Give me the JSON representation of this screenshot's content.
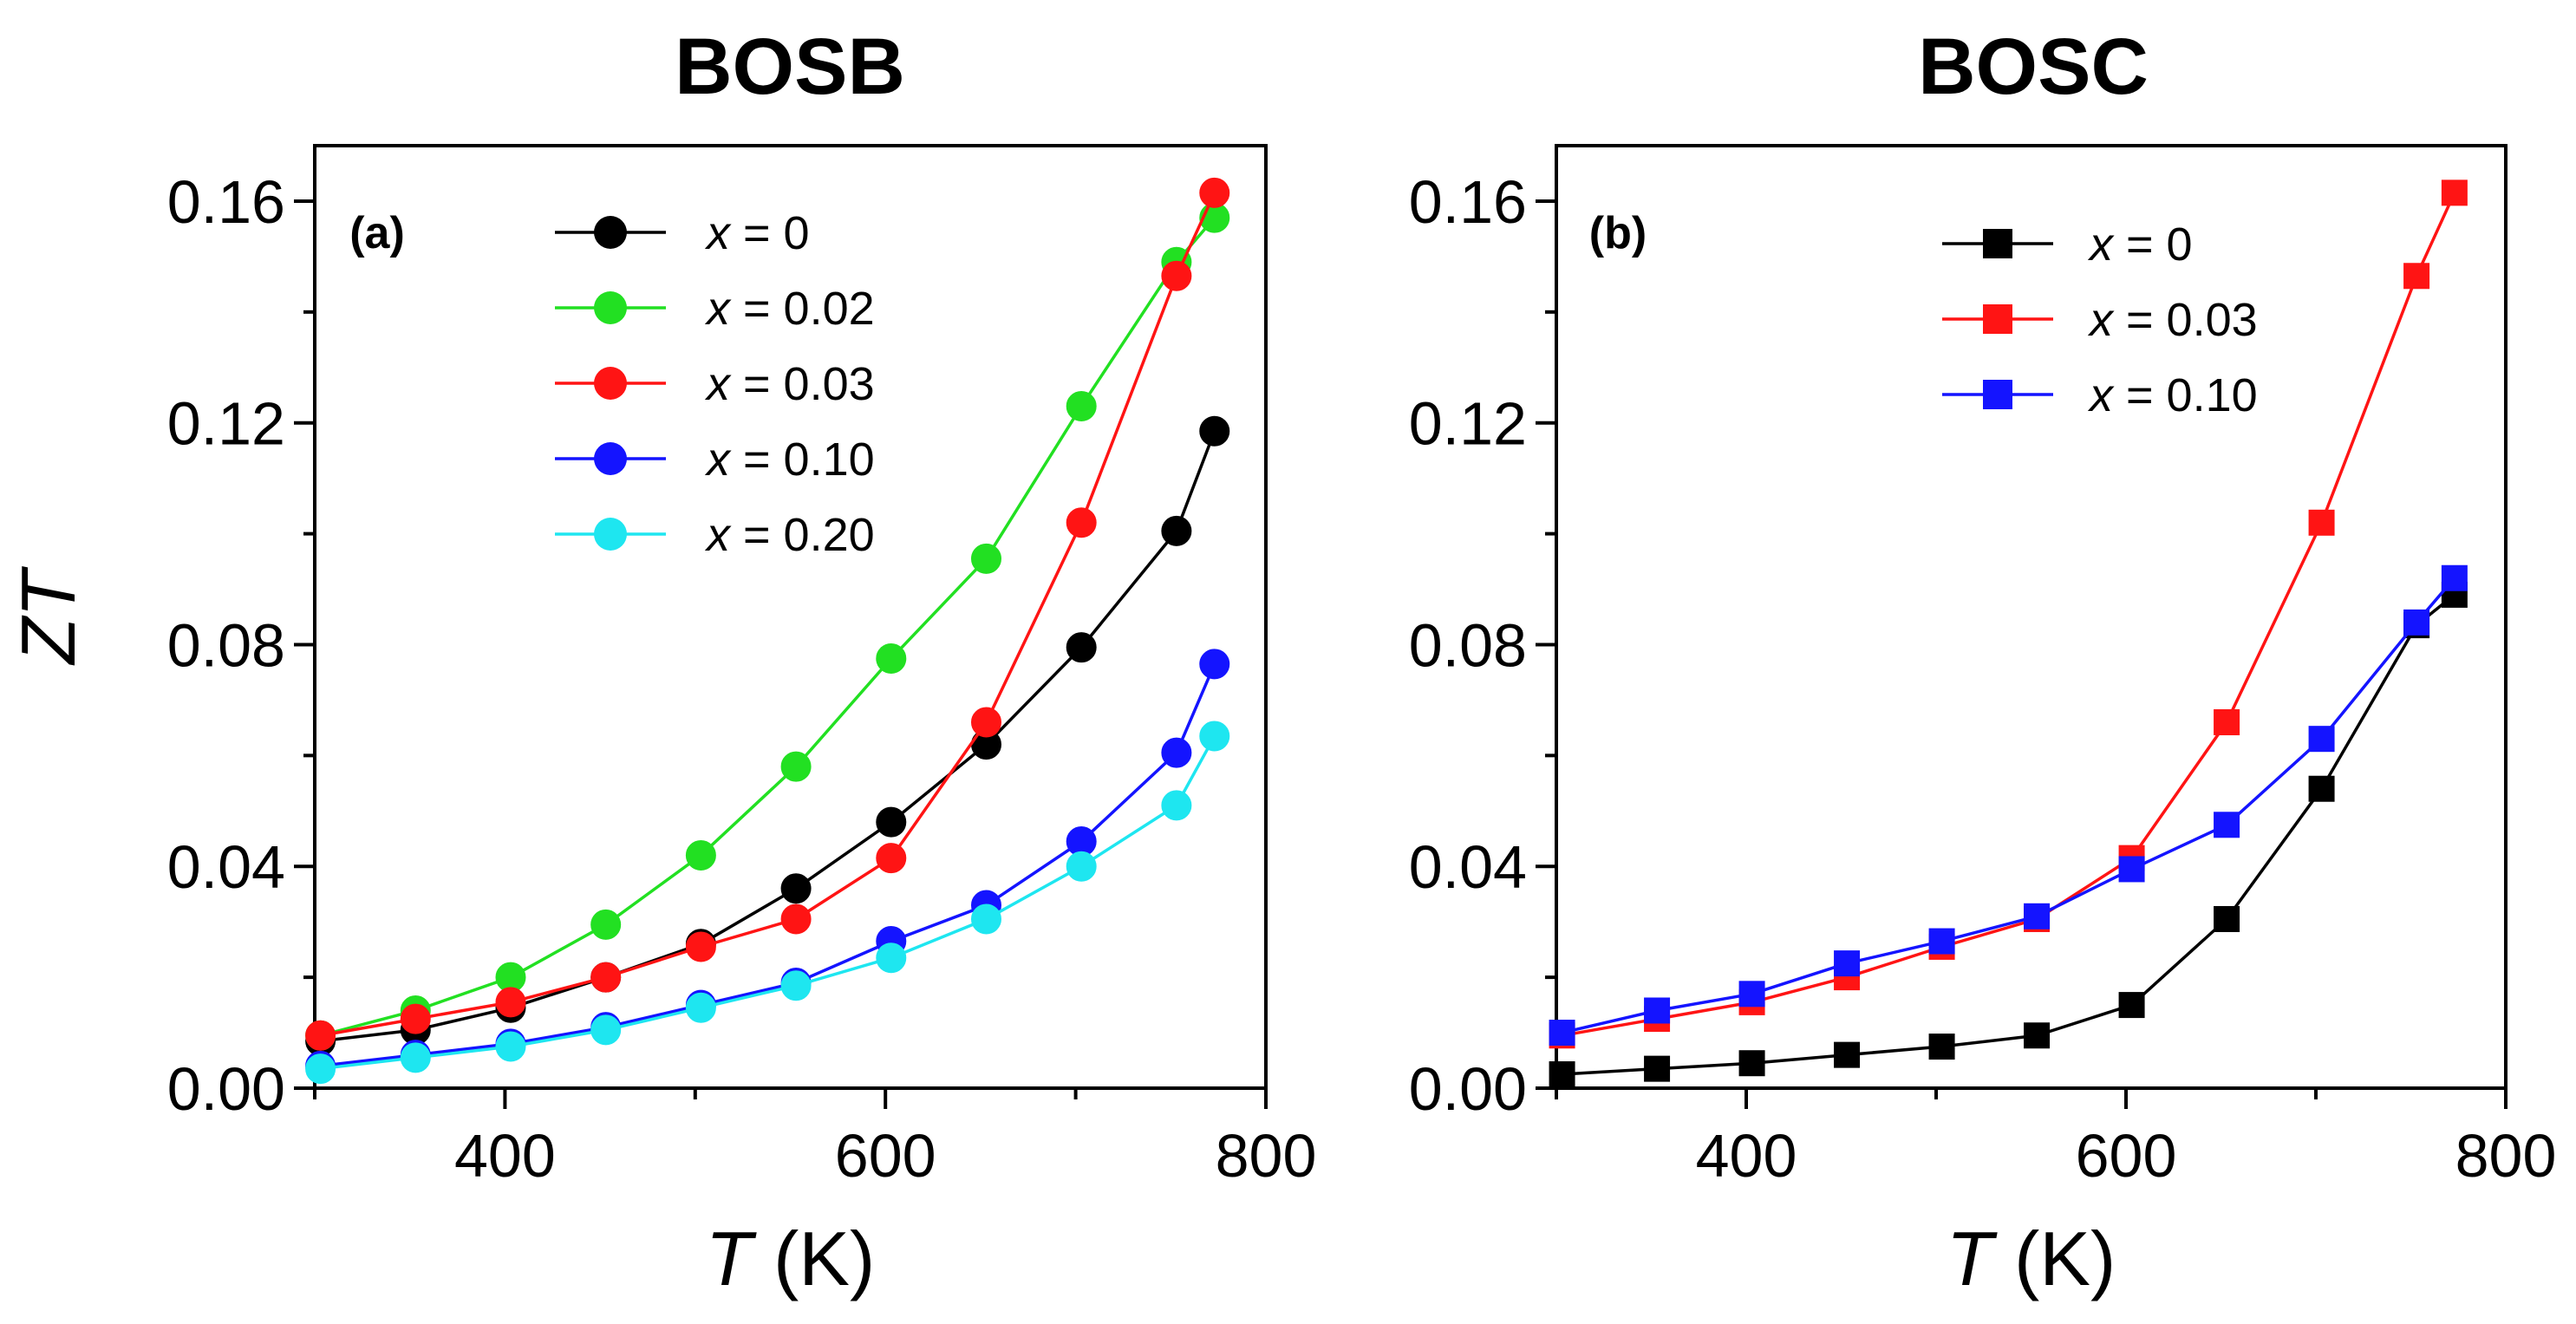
{
  "chart_data": [
    {
      "type": "line",
      "panel": "(a)",
      "title": "BOSB",
      "xlabel_italic": "T",
      "xlabel_unit": " (K)",
      "ylabel": "ZT",
      "xlim": [
        300,
        800
      ],
      "ylim": [
        0.0,
        0.17
      ],
      "xticks": [
        400,
        600,
        800
      ],
      "yticks": [
        0.0,
        0.04,
        0.08,
        0.12,
        0.16
      ],
      "ytick_labels": [
        "0.00",
        "0.04",
        "0.08",
        "0.12",
        "0.16"
      ],
      "marker": "circle",
      "legend_placement": "top-center",
      "x": [
        303,
        353,
        403,
        453,
        503,
        553,
        603,
        653,
        703,
        753,
        773
      ],
      "series": [
        {
          "name": "x = 0",
          "var": "x",
          "rest": " = 0",
          "color": "#000000",
          "values": [
            0.0085,
            0.0105,
            0.0145,
            0.02,
            0.026,
            0.036,
            0.048,
            0.062,
            0.0795,
            0.1005,
            0.1185
          ]
        },
        {
          "name": "x = 0.02",
          "var": "x",
          "rest": " = 0.02",
          "color": "#22e022",
          "values": [
            0.0095,
            0.014,
            0.02,
            0.0295,
            0.042,
            0.058,
            0.0775,
            0.0955,
            0.123,
            0.149,
            0.157
          ]
        },
        {
          "name": "x = 0.03",
          "var": "x",
          "rest": " = 0.03",
          "color": "#ff1414",
          "values": [
            0.0095,
            0.0125,
            0.0155,
            0.02,
            0.0255,
            0.0305,
            0.0415,
            0.066,
            0.102,
            0.1465,
            0.1615
          ]
        },
        {
          "name": "x = 0.10",
          "var": "x",
          "rest": " = 0.10",
          "color": "#1414ff",
          "values": [
            0.004,
            0.006,
            0.008,
            0.011,
            0.015,
            0.019,
            0.0265,
            0.033,
            0.0445,
            0.0605,
            0.0765
          ]
        },
        {
          "name": "x = 0.20",
          "var": "x",
          "rest": " = 0.20",
          "color": "#1ee6f0",
          "values": [
            0.0035,
            0.0055,
            0.0075,
            0.0105,
            0.0145,
            0.0185,
            0.0235,
            0.0305,
            0.04,
            0.051,
            0.0635
          ]
        }
      ]
    },
    {
      "type": "line",
      "panel": "(b)",
      "title": "BOSC",
      "xlabel_italic": "T",
      "xlabel_unit": " (K)",
      "ylabel": "",
      "xlim": [
        300,
        800
      ],
      "ylim": [
        0.0,
        0.17
      ],
      "xticks": [
        400,
        600,
        800
      ],
      "yticks": [
        0.0,
        0.04,
        0.08,
        0.12,
        0.16
      ],
      "ytick_labels": [
        "0.00",
        "0.04",
        "0.08",
        "0.12",
        "0.16"
      ],
      "marker": "square",
      "legend_placement": "top-right",
      "x": [
        303,
        353,
        403,
        453,
        503,
        553,
        603,
        653,
        703,
        753,
        773
      ],
      "series": [
        {
          "name": "x = 0",
          "var": "x",
          "rest": " = 0",
          "color": "#000000",
          "values": [
            0.0025,
            0.0035,
            0.0045,
            0.006,
            0.0075,
            0.0095,
            0.015,
            0.0305,
            0.054,
            0.0835,
            0.089
          ]
        },
        {
          "name": "x = 0.03",
          "var": "x",
          "rest": " = 0.03",
          "color": "#ff1414",
          "values": [
            0.0095,
            0.0125,
            0.0155,
            0.02,
            0.0255,
            0.0305,
            0.0415,
            0.066,
            0.102,
            0.1465,
            0.1615
          ]
        },
        {
          "name": "x = 0.10",
          "var": "x",
          "rest": " = 0.10",
          "color": "#1414ff",
          "values": [
            0.01,
            0.014,
            0.017,
            0.0225,
            0.0265,
            0.031,
            0.0395,
            0.0475,
            0.063,
            0.084,
            0.092
          ]
        }
      ]
    }
  ]
}
